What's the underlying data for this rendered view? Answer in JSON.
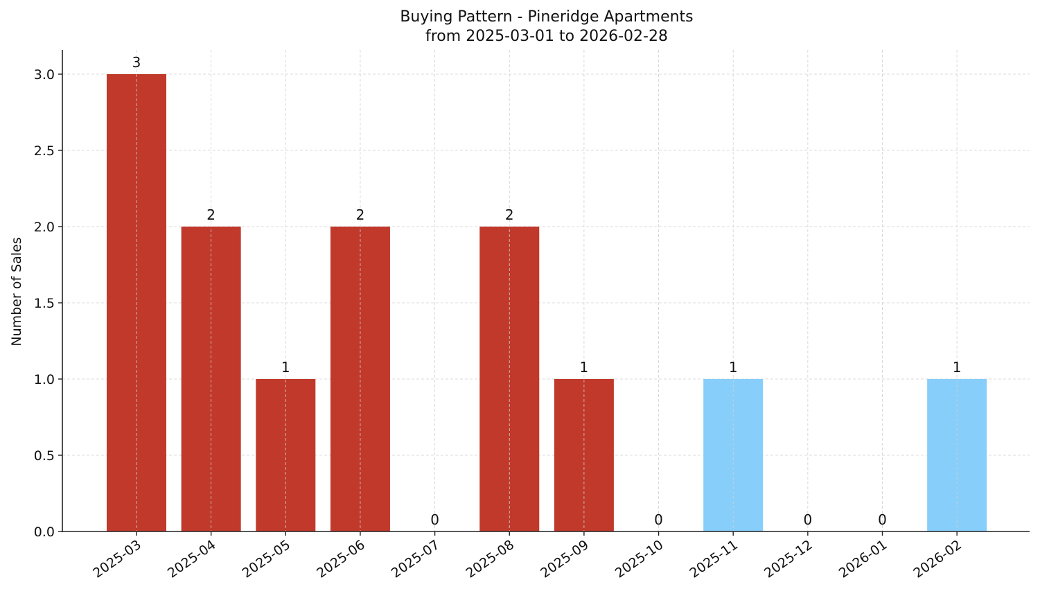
{
  "chart_data": {
    "type": "bar",
    "title": "Buying Pattern - Pineridge Apartments",
    "subtitle": "from 2025-03-01 to 2026-02-28",
    "xlabel": "",
    "ylabel": "Number of Sales",
    "categories": [
      "2025-03",
      "2025-04",
      "2025-05",
      "2025-06",
      "2025-07",
      "2025-08",
      "2025-09",
      "2025-10",
      "2025-11",
      "2025-12",
      "2026-01",
      "2026-02"
    ],
    "values": [
      3,
      2,
      1,
      2,
      0,
      2,
      1,
      0,
      1,
      0,
      0,
      1
    ],
    "bar_colors": [
      "#c0392b",
      "#c0392b",
      "#c0392b",
      "#c0392b",
      "#c0392b",
      "#c0392b",
      "#c0392b",
      "#c0392b",
      "#87cefa",
      "#87cefa",
      "#87cefa",
      "#87cefa"
    ],
    "data_labels": [
      "3",
      "2",
      "1",
      "2",
      "0",
      "2",
      "1",
      "0",
      "1",
      "0",
      "0",
      "1"
    ],
    "yticks": [
      "0.0",
      "0.5",
      "1.0",
      "1.5",
      "2.0",
      "2.5",
      "3.0"
    ],
    "ylim": [
      0,
      3.15
    ],
    "grid": true,
    "legend": null
  }
}
